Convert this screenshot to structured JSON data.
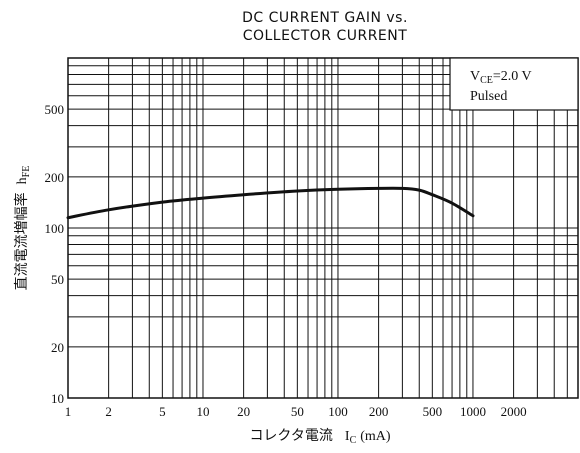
{
  "chart_data": {
    "type": "line",
    "title": [
      "DC CURRENT GAIN vs.",
      "COLLECTOR CURRENT"
    ],
    "xlabel": "コレクタ電流",
    "xlabel_symbol": "I",
    "xlabel_sub": "C",
    "xlabel_unit": "(mA)",
    "ylabel": "直流電流増幅率",
    "ylabel_symbol": "h",
    "ylabel_sub": "FE",
    "x_scale": "log",
    "y_scale": "log",
    "xlim": [
      1,
      6000
    ],
    "ylim": [
      10,
      1000
    ],
    "x_ticks": [
      1,
      2,
      5,
      10,
      20,
      50,
      100,
      200,
      500,
      1000,
      2000
    ],
    "y_ticks": [
      10,
      20,
      50,
      100,
      200,
      500
    ],
    "grid": true,
    "legend": {
      "placement": "top-right",
      "line1_main": "V",
      "line1_sub": "CE",
      "line1_rest": "=2.0 V",
      "line2": "Pulsed"
    },
    "series": [
      {
        "x": [
          1,
          2,
          5,
          10,
          20,
          50,
          100,
          200,
          300,
          400,
          500,
          700,
          1000
        ],
        "y": [
          115,
          128,
          142,
          150,
          157,
          165,
          169,
          171,
          171,
          167,
          157,
          140,
          118
        ]
      }
    ]
  }
}
